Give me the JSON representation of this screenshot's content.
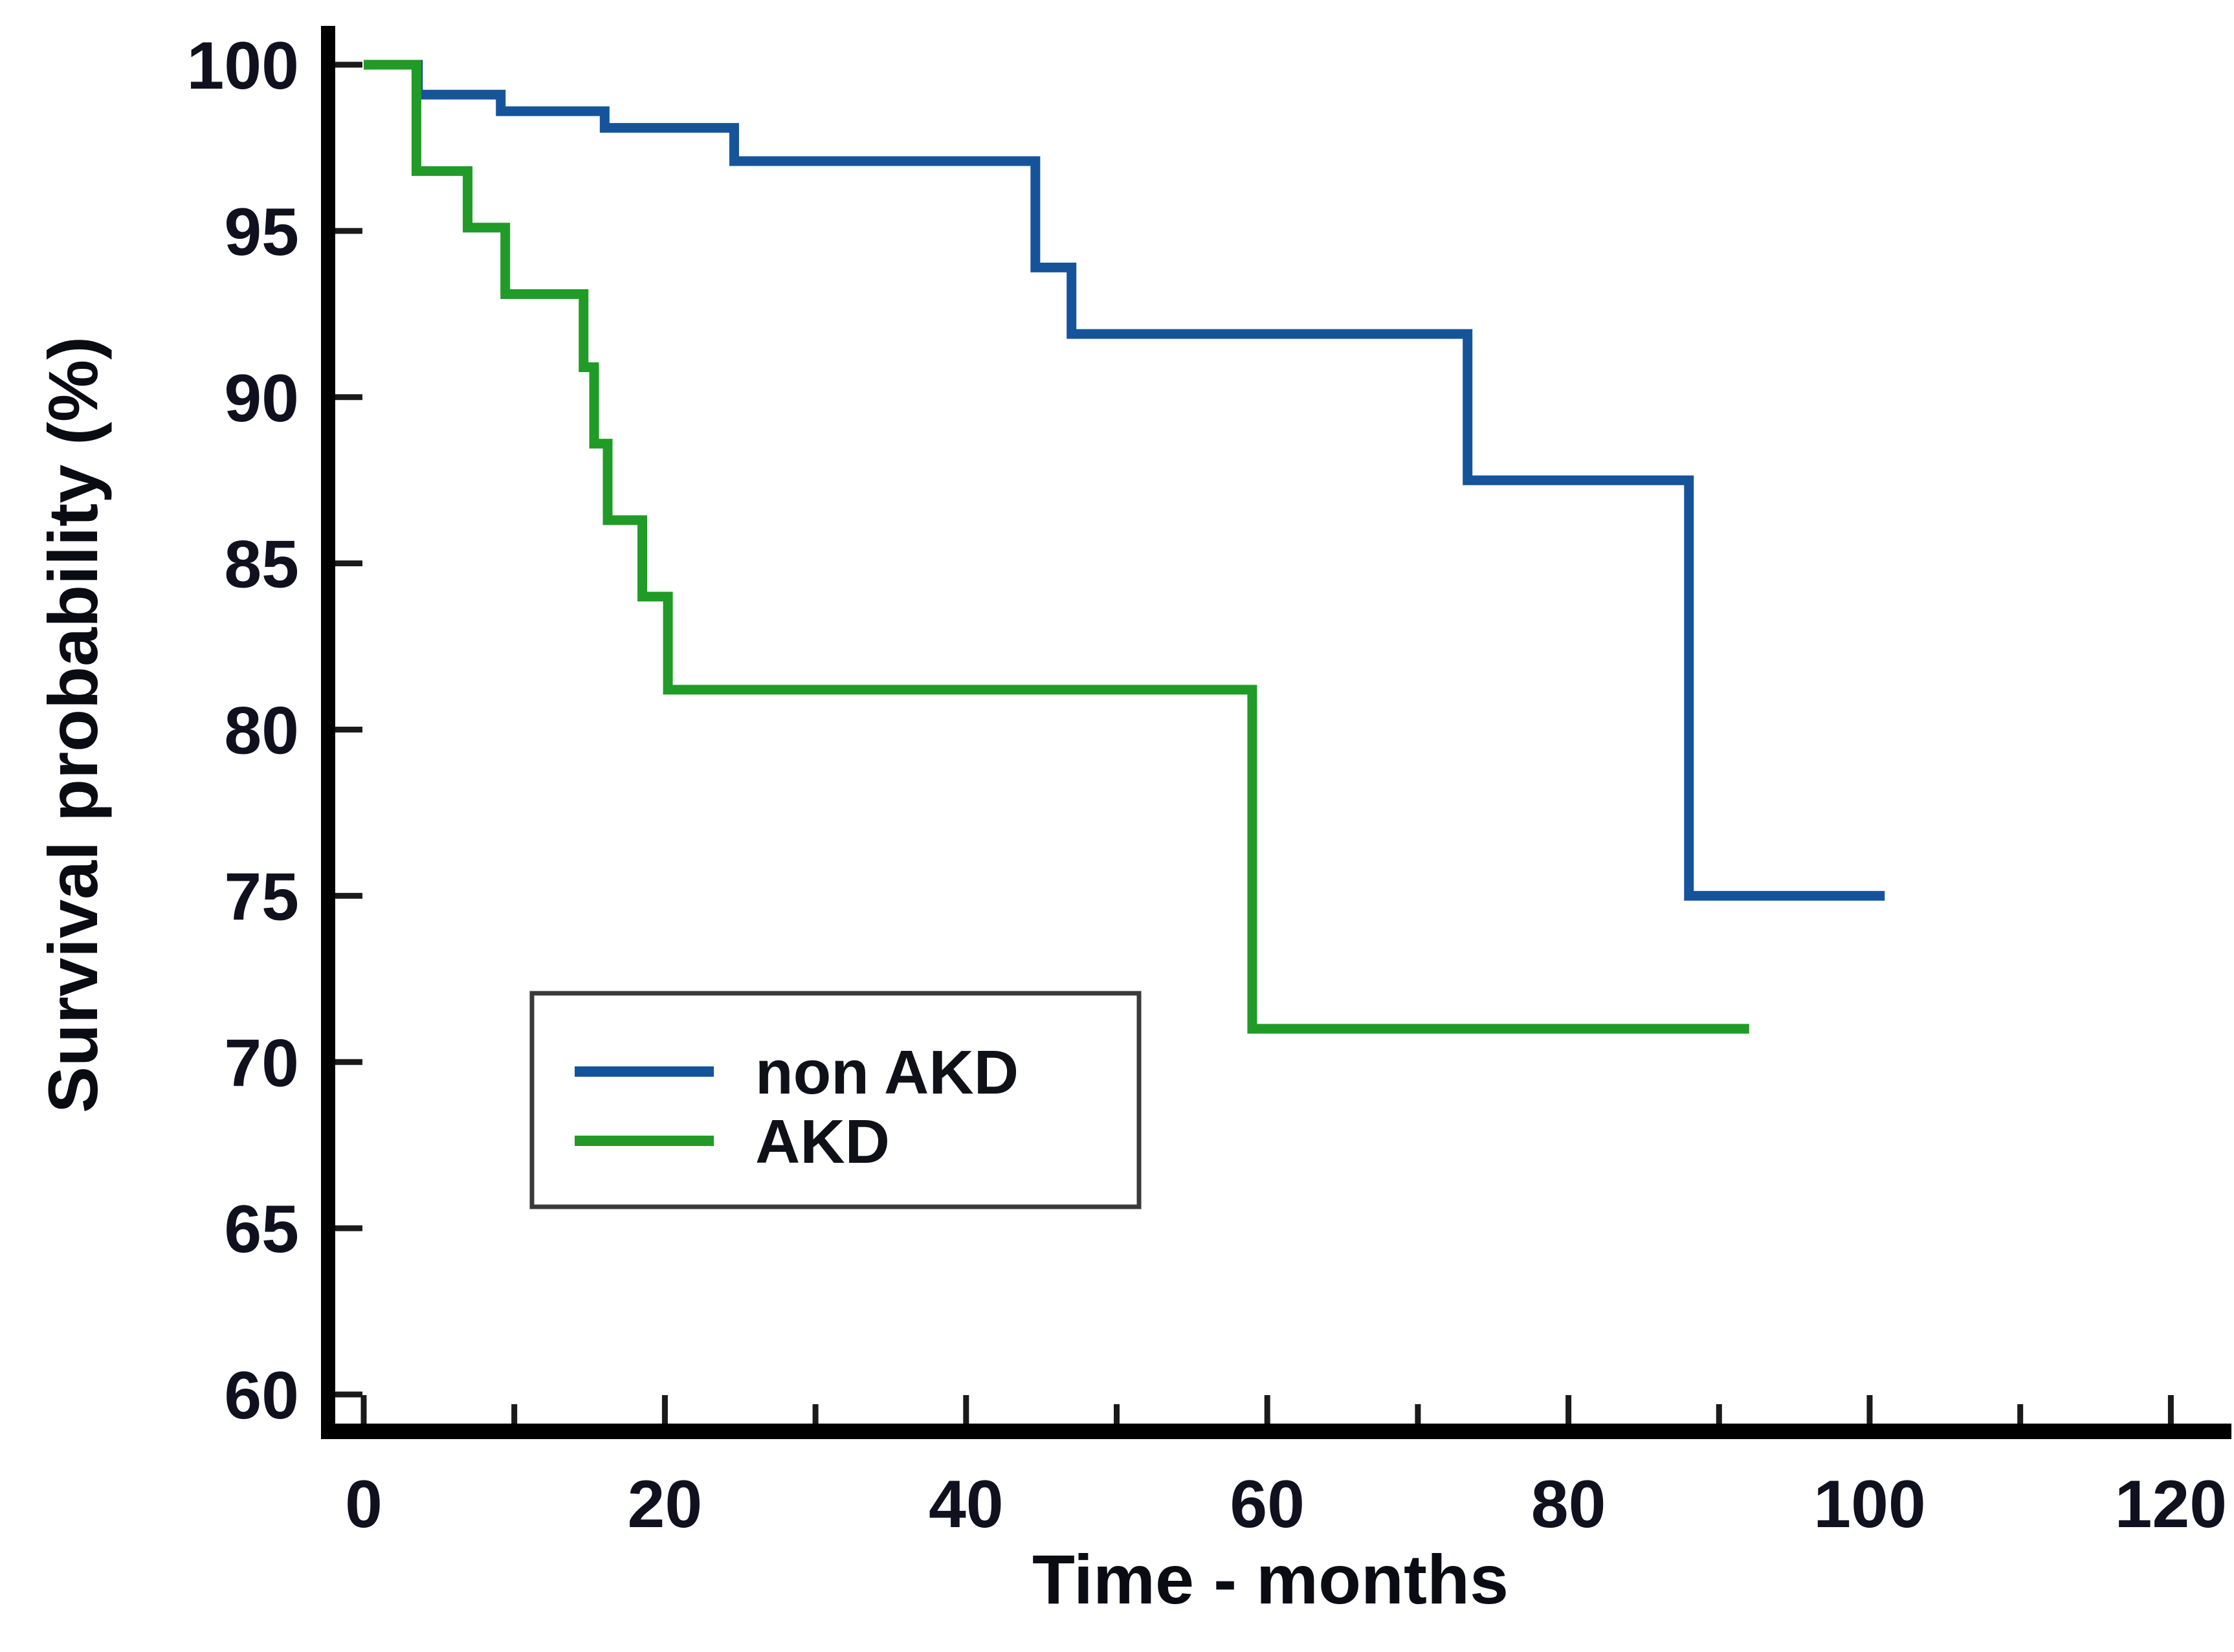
{
  "figure": {
    "background": "#ffffff"
  },
  "chart_data": {
    "type": "line",
    "subtype": "kaplan-meier-step-survival",
    "title": "",
    "xlabel": "Time - months",
    "ylabel": "Survival probability (%)",
    "xlim": [
      0,
      120
    ],
    "ylim": [
      60,
      100
    ],
    "x_major_ticks": [
      0,
      20,
      40,
      60,
      80,
      100,
      120
    ],
    "x_minor_ticks": [
      10,
      30,
      50,
      70,
      90,
      110
    ],
    "y_ticks": [
      100,
      95,
      90,
      85,
      80,
      75,
      70,
      65,
      60
    ],
    "grid": false,
    "tick_direction": "in",
    "legend_position": "inside-lower-left",
    "series": [
      {
        "name": "non AKD",
        "color": "#15549B",
        "start": {
          "t": 0,
          "p": 100
        },
        "steps": [
          {
            "t": 3.6,
            "p": 99.1
          },
          {
            "t": 9.1,
            "p": 98.6
          },
          {
            "t": 16.0,
            "p": 98.1
          },
          {
            "t": 24.6,
            "p": 97.1
          },
          {
            "t": 44.6,
            "p": 93.9
          },
          {
            "t": 47.0,
            "p": 91.9
          },
          {
            "t": 73.3,
            "p": 87.5
          },
          {
            "t": 88.0,
            "p": 75.0
          }
        ],
        "end_t": 101
      },
      {
        "name": "AKD",
        "color": "#219B27",
        "start": {
          "t": 0,
          "p": 100
        },
        "steps": [
          {
            "t": 3.5,
            "p": 96.8
          },
          {
            "t": 6.9,
            "p": 95.1
          },
          {
            "t": 9.4,
            "p": 93.1
          },
          {
            "t": 14.6,
            "p": 90.9
          },
          {
            "t": 15.3,
            "p": 88.6
          },
          {
            "t": 16.2,
            "p": 86.3
          },
          {
            "t": 18.5,
            "p": 84.0
          },
          {
            "t": 20.2,
            "p": 81.2
          },
          {
            "t": 59.0,
            "p": 71.0
          }
        ],
        "end_t": 92
      }
    ]
  },
  "legend": {
    "items": [
      {
        "label": "non AKD",
        "color": "#15549B"
      },
      {
        "label": "AKD",
        "color": "#219B27"
      }
    ]
  }
}
